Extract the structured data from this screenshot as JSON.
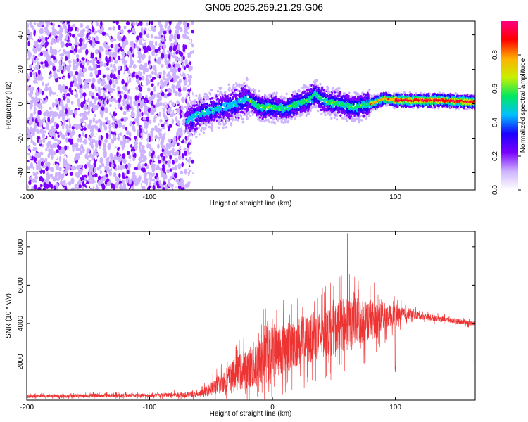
{
  "title": "GN05.2025.259.21.29.G06",
  "chart_data": [
    {
      "type": "heatmap",
      "xlabel": "Height of straight line (km)",
      "ylabel": "Frequency (Hz)",
      "xlim": [
        -200,
        165
      ],
      "ylim": [
        -50,
        48
      ],
      "xticks": [
        -200,
        -100,
        0,
        100
      ],
      "yticks": [
        -40,
        -20,
        0,
        20,
        40
      ],
      "colorbar": {
        "label": "Normalized spectral amplitude",
        "range": [
          0,
          1
        ],
        "ticks": [
          "0.0",
          "0.2",
          "0.4",
          "0.6",
          "0.8"
        ],
        "colors": [
          "#ffffff",
          "#cdb3ff",
          "#7a00ff",
          "#1a00ff",
          "#00c0ff",
          "#00e860",
          "#c8f000",
          "#ffb000",
          "#ff0000",
          "#ff0080"
        ]
      },
      "regions": [
        {
          "x_range": [
            -200,
            -65
          ],
          "description_values": {
            "amplitude": [
              0.0,
              0.2
            ],
            "freq_spread": [
              -50,
              48
            ]
          }
        },
        {
          "x_range": [
            -70,
            80
          ],
          "description_values": {
            "amplitude": [
              0.2,
              0.6
            ],
            "freq_spread": [
              -12,
              10
            ]
          }
        },
        {
          "x_range": [
            80,
            165
          ],
          "description_values": {
            "amplitude": [
              0.6,
              1.0
            ],
            "freq_spread": [
              -3,
              4
            ]
          }
        }
      ],
      "ridge": [
        [
          -70,
          -10
        ],
        [
          -60,
          -6
        ],
        [
          -45,
          -3
        ],
        [
          -30,
          0
        ],
        [
          -20,
          3
        ],
        [
          -10,
          -2
        ],
        [
          0,
          -2
        ],
        [
          10,
          -3
        ],
        [
          20,
          0
        ],
        [
          30,
          2
        ],
        [
          35,
          6
        ],
        [
          40,
          3
        ],
        [
          45,
          1
        ],
        [
          55,
          0
        ],
        [
          65,
          -2
        ],
        [
          75,
          -1
        ],
        [
          85,
          1
        ],
        [
          90,
          3
        ],
        [
          100,
          2
        ],
        [
          120,
          2
        ],
        [
          140,
          2
        ],
        [
          165,
          1
        ]
      ]
    },
    {
      "type": "line",
      "xlabel": "Height of straight line (km)",
      "ylabel": "SNR (10 * v/v)",
      "xlim": [
        -200,
        165
      ],
      "ylim": [
        0,
        8800
      ],
      "xticks": [
        -200,
        -100,
        0,
        100
      ],
      "yticks": [
        2000,
        4000,
        6000,
        8000
      ],
      "color": "#ee3333",
      "envelope": [
        {
          "x": -200,
          "base": 200,
          "amp": 150
        },
        {
          "x": -120,
          "base": 250,
          "amp": 200
        },
        {
          "x": -100,
          "base": 250,
          "amp": 200
        },
        {
          "x": -60,
          "base": 300,
          "amp": 300
        },
        {
          "x": -50,
          "base": 600,
          "amp": 700
        },
        {
          "x": -40,
          "base": 1000,
          "amp": 1200
        },
        {
          "x": -25,
          "base": 1500,
          "amp": 2000
        },
        {
          "x": -10,
          "base": 2000,
          "amp": 2800
        },
        {
          "x": 0,
          "base": 2500,
          "amp": 2800
        },
        {
          "x": 20,
          "base": 3000,
          "amp": 2600
        },
        {
          "x": 40,
          "base": 3400,
          "amp": 2500
        },
        {
          "x": 60,
          "base": 4000,
          "amp": 2800
        },
        {
          "x": 80,
          "base": 4200,
          "amp": 2200
        },
        {
          "x": 95,
          "base": 4400,
          "amp": 1200
        },
        {
          "x": 110,
          "base": 4500,
          "amp": 500
        },
        {
          "x": 130,
          "base": 4300,
          "amp": 300
        },
        {
          "x": 165,
          "base": 4000,
          "amp": 250
        }
      ],
      "peak": {
        "x": 61,
        "y": 8700
      }
    }
  ]
}
